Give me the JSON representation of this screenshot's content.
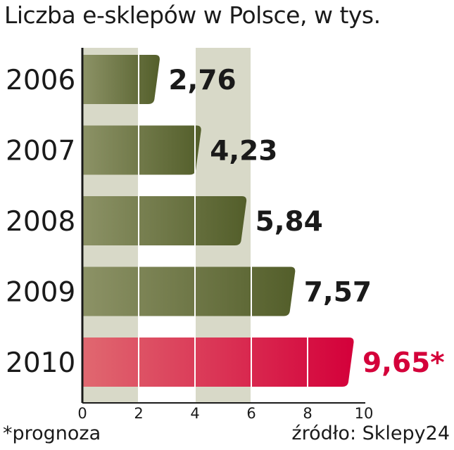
{
  "title": "Liczba e-sklepów w Polsce, w tys.",
  "footnote": "*prognoza",
  "source": "źródło: Sklepy24",
  "colors": {
    "bar": "#535e2a",
    "bar_light": "#8c9266",
    "highlight": "#d4003a",
    "highlight_light": "#e06870",
    "band": "#d8d9c8",
    "gridline": "#ffffff"
  },
  "chart_data": {
    "type": "bar",
    "orientation": "horizontal",
    "title": "Liczba e-sklepów w Polsce, w tys.",
    "categories": [
      "2006",
      "2007",
      "2008",
      "2009",
      "2010"
    ],
    "values": [
      2.76,
      4.23,
      5.84,
      7.57,
      9.65
    ],
    "value_labels": [
      "2,76",
      "4,23",
      "5,84",
      "7,57",
      "9,65*"
    ],
    "highlight_index": 4,
    "xlim": [
      0,
      10
    ],
    "xticks": [
      "0",
      "2",
      "4",
      "6",
      "8",
      "10"
    ],
    "grid": true,
    "xlabel": "",
    "ylabel": ""
  }
}
